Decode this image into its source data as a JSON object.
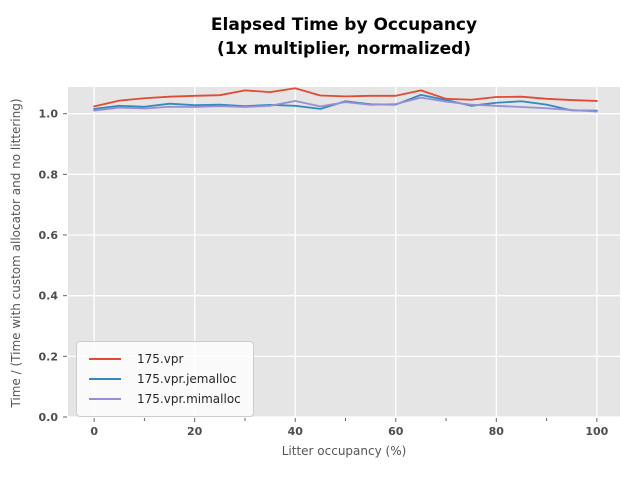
{
  "chart": {
    "title_line1": "Elapsed Time by Occupancy",
    "title_line2": "(1x multiplier, normalized)",
    "colors": {
      "plot_bg": "#E5E5E5",
      "grid": "#FFFFFF",
      "tick_mark": "#666666",
      "tick_text": "#4d4d4d",
      "axis_label_text": "#555555",
      "title_text": "#000000",
      "legend_border": "#CCCCCC"
    }
  },
  "chart_data": {
    "type": "line",
    "title": "Elapsed Time by Occupancy\n(1x multiplier, normalized)",
    "xlabel": "Litter occupancy (%)",
    "ylabel": "Time / (Time with custom allocator and no littering)",
    "x": [
      0,
      5,
      10,
      15,
      20,
      25,
      30,
      35,
      40,
      45,
      50,
      55,
      60,
      65,
      70,
      75,
      80,
      85,
      90,
      95,
      100
    ],
    "series": [
      {
        "name": "175.vpr",
        "color": "#E24A33",
        "values": [
          1.024,
          1.043,
          1.051,
          1.056,
          1.059,
          1.061,
          1.077,
          1.071,
          1.084,
          1.06,
          1.057,
          1.059,
          1.059,
          1.077,
          1.049,
          1.046,
          1.055,
          1.056,
          1.049,
          1.045,
          1.042
        ]
      },
      {
        "name": "175.vpr.jemalloc",
        "color": "#348ABD",
        "values": [
          1.016,
          1.026,
          1.023,
          1.033,
          1.028,
          1.03,
          1.025,
          1.029,
          1.026,
          1.016,
          1.041,
          1.031,
          1.03,
          1.062,
          1.045,
          1.026,
          1.036,
          1.041,
          1.03,
          1.011,
          1.01
        ]
      },
      {
        "name": "175.vpr.mimalloc",
        "color": "#988ED5",
        "values": [
          1.01,
          1.02,
          1.017,
          1.023,
          1.022,
          1.025,
          1.022,
          1.026,
          1.042,
          1.024,
          1.038,
          1.029,
          1.032,
          1.053,
          1.04,
          1.03,
          1.026,
          1.022,
          1.018,
          1.012,
          1.007
        ]
      }
    ],
    "xticks": [
      0,
      20,
      40,
      60,
      80,
      100
    ],
    "xticks_minor": [
      10,
      30,
      50,
      70,
      90
    ],
    "yticks": [
      0.0,
      0.2,
      0.4,
      0.6,
      0.8,
      1.0
    ],
    "xlim": [
      -5.2,
      104.6
    ],
    "ylim": [
      0,
      1.088
    ],
    "grid": true,
    "legend_position": "lower-left"
  }
}
